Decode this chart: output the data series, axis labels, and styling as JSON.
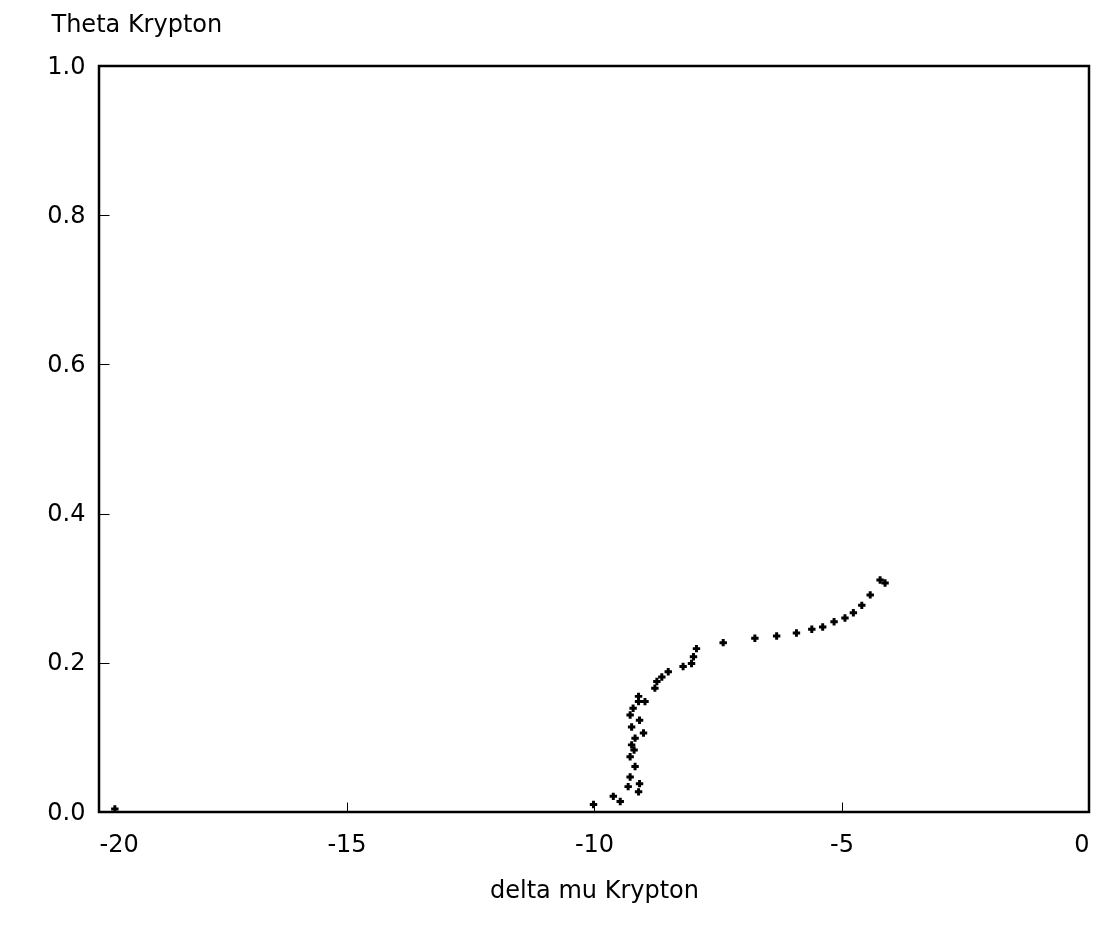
{
  "chart_data": {
    "type": "scatter",
    "ylabel": "Theta Krypton",
    "xlabel": "delta mu Krypton",
    "marker": "cross",
    "grid": false,
    "xlim": [
      -20,
      0
    ],
    "xticks": [
      -20,
      -15,
      -10,
      -5,
      0
    ],
    "ylim": [
      0,
      1.0
    ],
    "yticks": [
      {
        "value": 0,
        "label": "0.0"
      },
      0.2,
      0.4,
      0.6,
      0.8,
      {
        "value": 1,
        "label": "1.0"
      }
    ],
    "x": [
      -19.68,
      -10.01,
      -9.61,
      -9.47,
      -9.31,
      -9.1,
      -9.08,
      -9.27,
      -9.17,
      -9.27,
      -9.19,
      -9.24,
      -9.17,
      -9.0,
      -9.24,
      -9.08,
      -9.27,
      -9.21,
      -9.1,
      -8.97,
      -9.1,
      -8.77,
      -8.73,
      -8.63,
      -8.5,
      -8.2,
      -8.03,
      -7.99,
      -7.93,
      -7.39,
      -6.75,
      -6.31,
      -5.91,
      -5.6,
      -5.38,
      -5.15,
      -4.93,
      -4.76,
      -4.59,
      -4.42,
      -4.22,
      -4.12
    ],
    "series": [
      {
        "color": "#000000",
        "values": [
          0.004,
          0.01,
          0.021,
          0.014,
          0.034,
          0.027,
          0.038,
          0.047,
          0.061,
          0.074,
          0.083,
          0.09,
          0.099,
          0.106,
          0.114,
          0.123,
          0.13,
          0.139,
          0.148,
          0.148,
          0.155,
          0.166,
          0.175,
          0.181,
          0.188,
          0.195,
          0.199,
          0.208,
          0.219,
          0.227,
          0.233,
          0.236,
          0.24,
          0.245,
          0.248,
          0.255,
          0.26,
          0.267,
          0.277,
          0.291,
          0.311,
          0.307
        ]
      }
    ]
  }
}
